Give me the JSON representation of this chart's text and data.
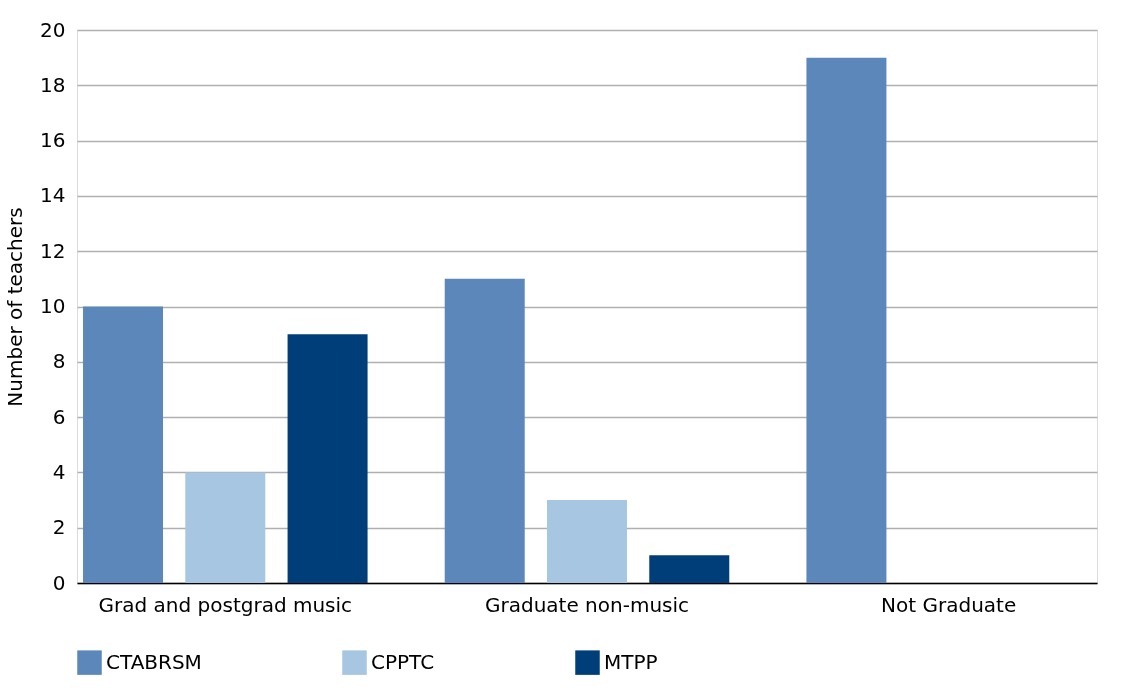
{
  "chart_data": {
    "type": "bar",
    "ylabel": "Number of teachers",
    "categories": [
      "Grad and postgrad music",
      "Graduate non-music",
      "Not Graduate"
    ],
    "series": [
      {
        "name": "CTABRSM",
        "color": "#5b87ba",
        "values": [
          10,
          11,
          19
        ]
      },
      {
        "name": "CPPTC",
        "color": "#a6c6e2",
        "values": [
          4,
          3,
          0
        ]
      },
      {
        "name": "MTPP",
        "color": "#003e7a",
        "values": [
          9,
          1,
          0
        ]
      }
    ],
    "ylim": [
      0,
      20
    ],
    "yticks": [
      0,
      2,
      4,
      6,
      8,
      10,
      12,
      14,
      16,
      18,
      20
    ],
    "grid": "y",
    "legend": "bottom"
  }
}
